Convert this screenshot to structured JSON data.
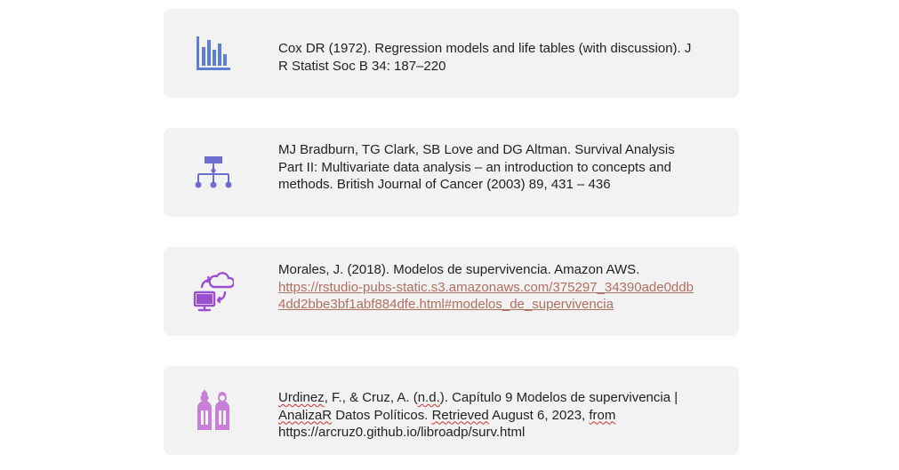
{
  "references": [
    {
      "icon": "bar-chart-icon",
      "text": "Cox DR (1972). Regression models and life tables (with discussion). J R Statist Soc B 34: 187–220"
    },
    {
      "icon": "hierarchy-icon",
      "text": "MJ Bradburn, TG Clark, SB Love and DG Altman. Survival Analysis Part II: Multivariate data analysis – an introduction to concepts and methods. British Journal of Cancer (2003) 89, 431 – 436"
    },
    {
      "icon": "cloud-sync-computer-icon",
      "text": "Morales, J. (2018). Modelos de supervivencia. Amazon AWS.",
      "link": "https://rstudio-pubs-static.s3.amazonaws.com/375297_34390ade0ddb4dd2bbe3bf1abf884dfe.html#modelos_de_supervivencia"
    },
    {
      "icon": "people-figures-icon",
      "parts": {
        "p1": "Urdinez",
        "p2": ", F., & Cruz, A. (",
        "p3": "n.d.",
        "p4": "). Capítulo 9 Modelos de supervivencia | ",
        "p5": "AnalizaR",
        "p6": " Datos Políticos. ",
        "p7": "Retrieved",
        "p8": " August 6, 2023, ",
        "p9": "from",
        "p10": " https://arcruz0.github.io/libroadp/surv.html"
      }
    }
  ],
  "colors": {
    "card_bg": "#f2f2f2",
    "icon_blue": "#5b7fd6",
    "icon_indigo": "#6c6fd0",
    "icon_purple": "#9b4fd0",
    "icon_orchid": "#c77fd8",
    "link": "#b07060"
  }
}
